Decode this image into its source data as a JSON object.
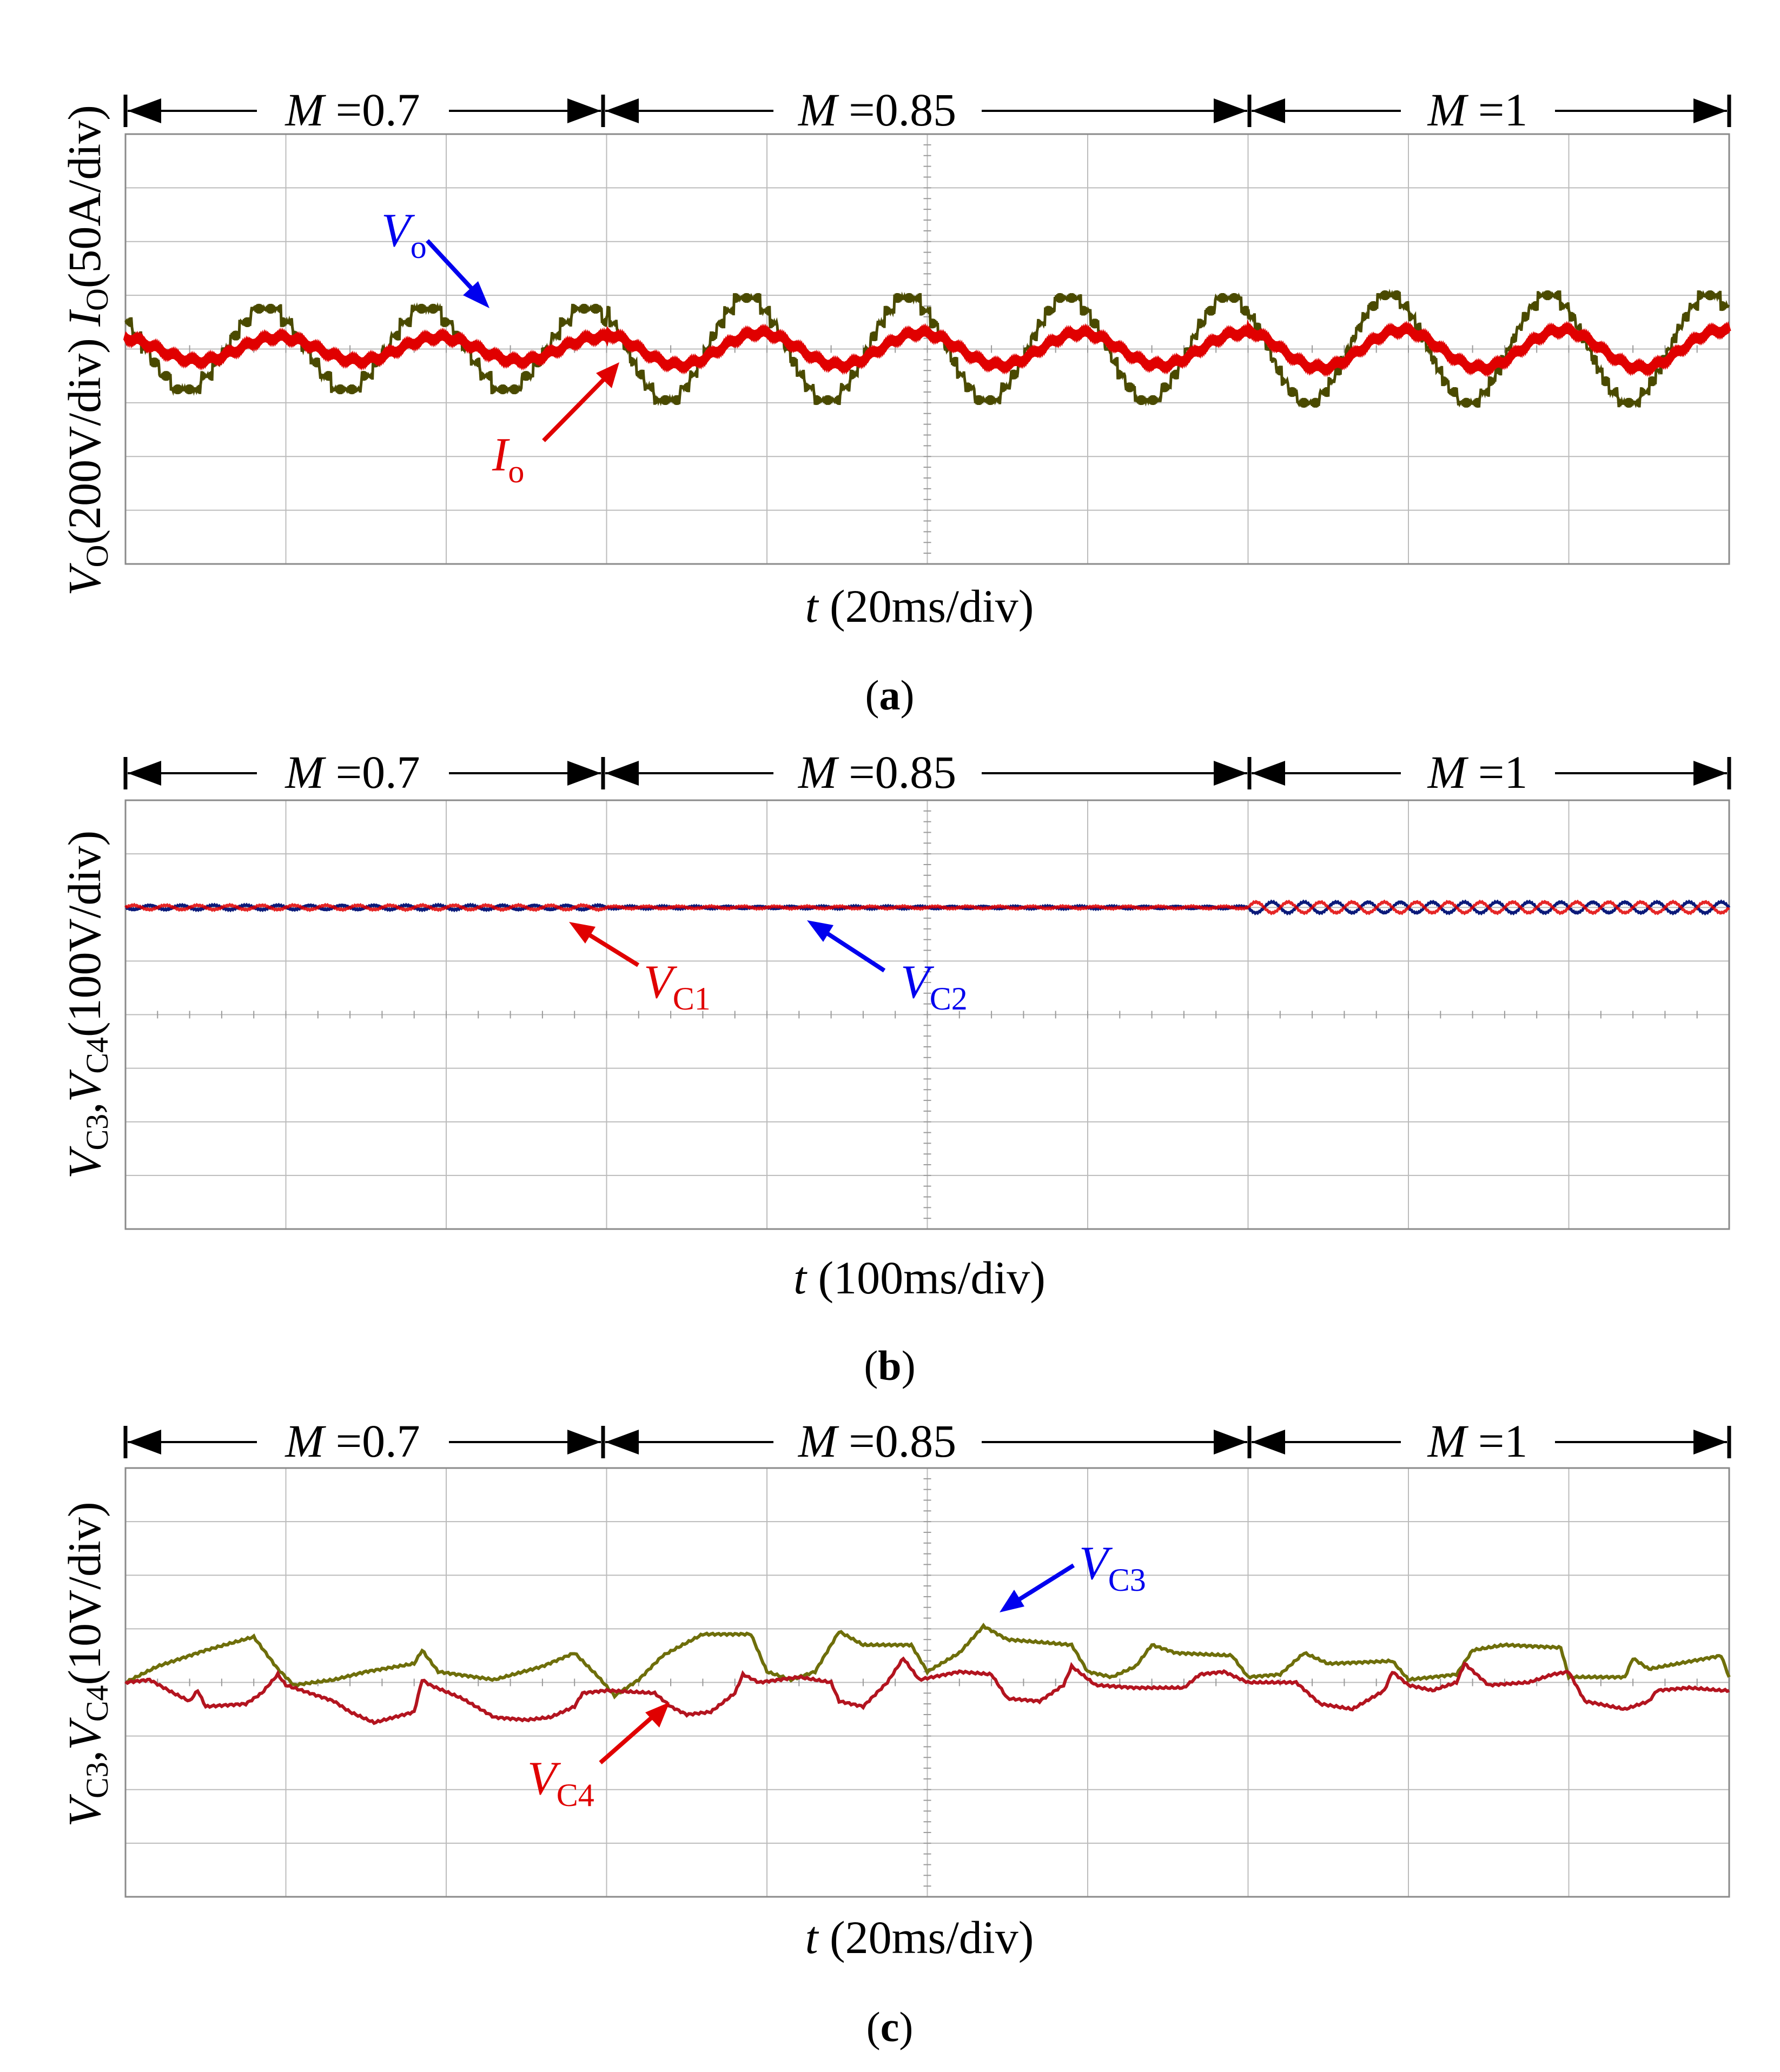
{
  "colors": {
    "olive": "#4a4a00",
    "olive_c": "#6e6e0a",
    "red": "#e00000",
    "darkred": "#b3141f",
    "navy": "#0b1a7a",
    "blue": "#0000ee",
    "grid": "#bcbcbc",
    "text": "#000000"
  },
  "segments": [
    {
      "var": "M",
      "eq": " =",
      "val": "0.7"
    },
    {
      "var": "M",
      "eq": " =",
      "val": "0.85"
    },
    {
      "var": "M",
      "eq": " =",
      "val": "1"
    }
  ],
  "panels": [
    {
      "caption": {
        "open": "(",
        "letter": "a",
        "close": ")"
      },
      "ylabel": {
        "p1": "V",
        "s1": "O",
        "p2": "(200V/div) ",
        "p3": "I",
        "s2": "O",
        "p4": "(50A/div)"
      },
      "xlabel": {
        "var": "t",
        "unit": " (20ms/div)"
      },
      "annotations": [
        {
          "main": "V",
          "sub": "o",
          "color_key": "blue"
        },
        {
          "main": "I",
          "sub": "o",
          "color_key": "red"
        }
      ]
    },
    {
      "caption": {
        "open": "(",
        "letter": "b",
        "close": ")"
      },
      "ylabel": {
        "p1": "V",
        "s1": "C3",
        "p2": ",",
        "p3": "V",
        "s2": "C4",
        "p4": "(100V/div)"
      },
      "xlabel": {
        "var": "t",
        "unit": " (100ms/div)"
      },
      "annotations": [
        {
          "main": "V",
          "sub": "C1",
          "color_key": "red"
        },
        {
          "main": "V",
          "sub": "C2",
          "color_key": "blue"
        }
      ]
    },
    {
      "caption": {
        "open": "(",
        "letter": "c",
        "close": ")"
      },
      "ylabel": {
        "p1": "V",
        "s1": "C3",
        "p2": ",",
        "p3": "V",
        "s2": "C4",
        "p4": "(10V/div)"
      },
      "xlabel": {
        "var": "t",
        "unit": " (20ms/div)"
      },
      "annotations": [
        {
          "main": "V",
          "sub": "C3",
          "color_key": "blue"
        },
        {
          "main": "V",
          "sub": "C4",
          "color_key": "red"
        }
      ]
    }
  ],
  "chart_data": [
    {
      "type": "line",
      "panel": "a",
      "grid": true,
      "x_divisions": 10,
      "y_divisions": 8,
      "x_unit": "ms",
      "xlim": [
        0,
        200
      ],
      "ylim_div": [
        -4,
        4
      ],
      "segment_bounds_ms": [
        0,
        60,
        140,
        200
      ],
      "series": [
        {
          "name": "Vo",
          "color_key": "olive",
          "style": "stepped",
          "amplitude_div": [
            0.75,
            0.95,
            1.0
          ],
          "frequency_hz": 50
        },
        {
          "name": "Io",
          "color_key": "red",
          "style": "sine",
          "amplitude_div": [
            0.22,
            0.3,
            0.35
          ],
          "frequency_hz": 50
        }
      ]
    },
    {
      "type": "line",
      "panel": "b",
      "grid": true,
      "x_divisions": 10,
      "y_divisions": 8,
      "x_unit": "ms",
      "xlim": [
        0,
        1000
      ],
      "ylim_div": [
        -4,
        4
      ],
      "segment_bounds_ms": [
        0,
        300,
        700,
        1000
      ],
      "series": [
        {
          "name": "VC1",
          "color_key": "red",
          "offset_div": 2.0,
          "ripple_div": [
            0.04,
            0.02,
            0.1
          ],
          "ripple_hz": 50
        },
        {
          "name": "VC2",
          "color_key": "navy",
          "offset_div": 2.0,
          "ripple_div": [
            0.04,
            0.02,
            0.1
          ],
          "ripple_hz": 50
        }
      ]
    },
    {
      "type": "line",
      "panel": "c",
      "grid": true,
      "x_divisions": 10,
      "y_divisions": 8,
      "x_unit": "ms",
      "xlim": [
        0,
        200
      ],
      "ylim_div": [
        -4,
        4
      ],
      "segment_bounds_ms": [
        0,
        60,
        140,
        200
      ],
      "series": [
        {
          "name": "VC3",
          "color_key": "olive_c",
          "points": [
            [
              0,
              0
            ],
            [
              4,
              0.3
            ],
            [
              10,
              0.6
            ],
            [
              16,
              0.85
            ],
            [
              19,
              0.25
            ],
            [
              21,
              -0.05
            ],
            [
              26,
              0.05
            ],
            [
              30,
              0.2
            ],
            [
              36,
              0.35
            ],
            [
              37,
              0.6
            ],
            [
              39,
              0.2
            ],
            [
              46,
              0.05
            ],
            [
              52,
              0.3
            ],
            [
              56,
              0.55
            ],
            [
              59,
              0.1
            ],
            [
              61,
              -0.25
            ],
            [
              64,
              0.05
            ],
            [
              67,
              0.5
            ],
            [
              72,
              0.9
            ],
            [
              78,
              0.9
            ],
            [
              80,
              0.2
            ],
            [
              83,
              0.05
            ],
            [
              86,
              0.2
            ],
            [
              89,
              0.95
            ],
            [
              92,
              0.7
            ],
            [
              98,
              0.7
            ],
            [
              100,
              0.2
            ],
            [
              104,
              0.55
            ],
            [
              107,
              1.05
            ],
            [
              110,
              0.8
            ],
            [
              118,
              0.7
            ],
            [
              120,
              0.2
            ],
            [
              123,
              0.1
            ],
            [
              126,
              0.3
            ],
            [
              128,
              0.7
            ],
            [
              131,
              0.55
            ],
            [
              138,
              0.5
            ],
            [
              140,
              0.1
            ],
            [
              144,
              0.15
            ],
            [
              147,
              0.55
            ],
            [
              150,
              0.35
            ],
            [
              158,
              0.4
            ],
            [
              160,
              0.05
            ],
            [
              166,
              0.15
            ],
            [
              168,
              0.6
            ],
            [
              172,
              0.7
            ],
            [
              179,
              0.65
            ],
            [
              180,
              0.1
            ],
            [
              187,
              0.1
            ],
            [
              188,
              0.45
            ],
            [
              190,
              0.25
            ],
            [
              199,
              0.5
            ],
            [
              200,
              0.1
            ]
          ]
        },
        {
          "name": "VC4",
          "color_key": "darkred",
          "points": [
            [
              0,
              0
            ],
            [
              3,
              0.05
            ],
            [
              6,
              -0.2
            ],
            [
              8,
              -0.35
            ],
            [
              9,
              -0.15
            ],
            [
              10,
              -0.45
            ],
            [
              15,
              -0.4
            ],
            [
              17,
              -0.2
            ],
            [
              19,
              0.15
            ],
            [
              20,
              -0.05
            ],
            [
              22,
              -0.15
            ],
            [
              26,
              -0.35
            ],
            [
              28,
              -0.55
            ],
            [
              31,
              -0.75
            ],
            [
              36,
              -0.55
            ],
            [
              37,
              0.05
            ],
            [
              38,
              -0.05
            ],
            [
              42,
              -0.3
            ],
            [
              46,
              -0.65
            ],
            [
              50,
              -0.7
            ],
            [
              53,
              -0.65
            ],
            [
              56,
              -0.45
            ],
            [
              57,
              -0.2
            ],
            [
              60,
              -0.15
            ],
            [
              66,
              -0.2
            ],
            [
              68,
              -0.45
            ],
            [
              70,
              -0.6
            ],
            [
              73,
              -0.55
            ],
            [
              76,
              -0.2
            ],
            [
              77,
              0.15
            ],
            [
              79,
              0.0
            ],
            [
              84,
              0.1
            ],
            [
              88,
              0.0
            ],
            [
              89,
              -0.35
            ],
            [
              92,
              -0.45
            ],
            [
              95,
              0.0
            ],
            [
              97,
              0.45
            ],
            [
              99,
              0.05
            ],
            [
              104,
              0.2
            ],
            [
              108,
              0.15
            ],
            [
              110,
              -0.3
            ],
            [
              114,
              -0.35
            ],
            [
              117,
              -0.05
            ],
            [
              118,
              0.3
            ],
            [
              121,
              -0.05
            ],
            [
              126,
              -0.1
            ],
            [
              132,
              -0.1
            ],
            [
              134,
              0.15
            ],
            [
              137,
              0.2
            ],
            [
              140,
              0.0
            ],
            [
              146,
              0.0
            ],
            [
              149,
              -0.4
            ],
            [
              153,
              -0.5
            ],
            [
              157,
              -0.15
            ],
            [
              158,
              0.2
            ],
            [
              160,
              -0.05
            ],
            [
              163,
              -0.15
            ],
            [
              166,
              0.0
            ],
            [
              167,
              0.35
            ],
            [
              170,
              -0.05
            ],
            [
              175,
              0.0
            ],
            [
              178,
              0.15
            ],
            [
              180,
              0.2
            ],
            [
              182,
              -0.35
            ],
            [
              187,
              -0.5
            ],
            [
              190,
              -0.35
            ],
            [
              191,
              -0.15
            ],
            [
              195,
              -0.1
            ],
            [
              199,
              -0.15
            ],
            [
              200,
              -0.15
            ]
          ]
        }
      ]
    }
  ]
}
